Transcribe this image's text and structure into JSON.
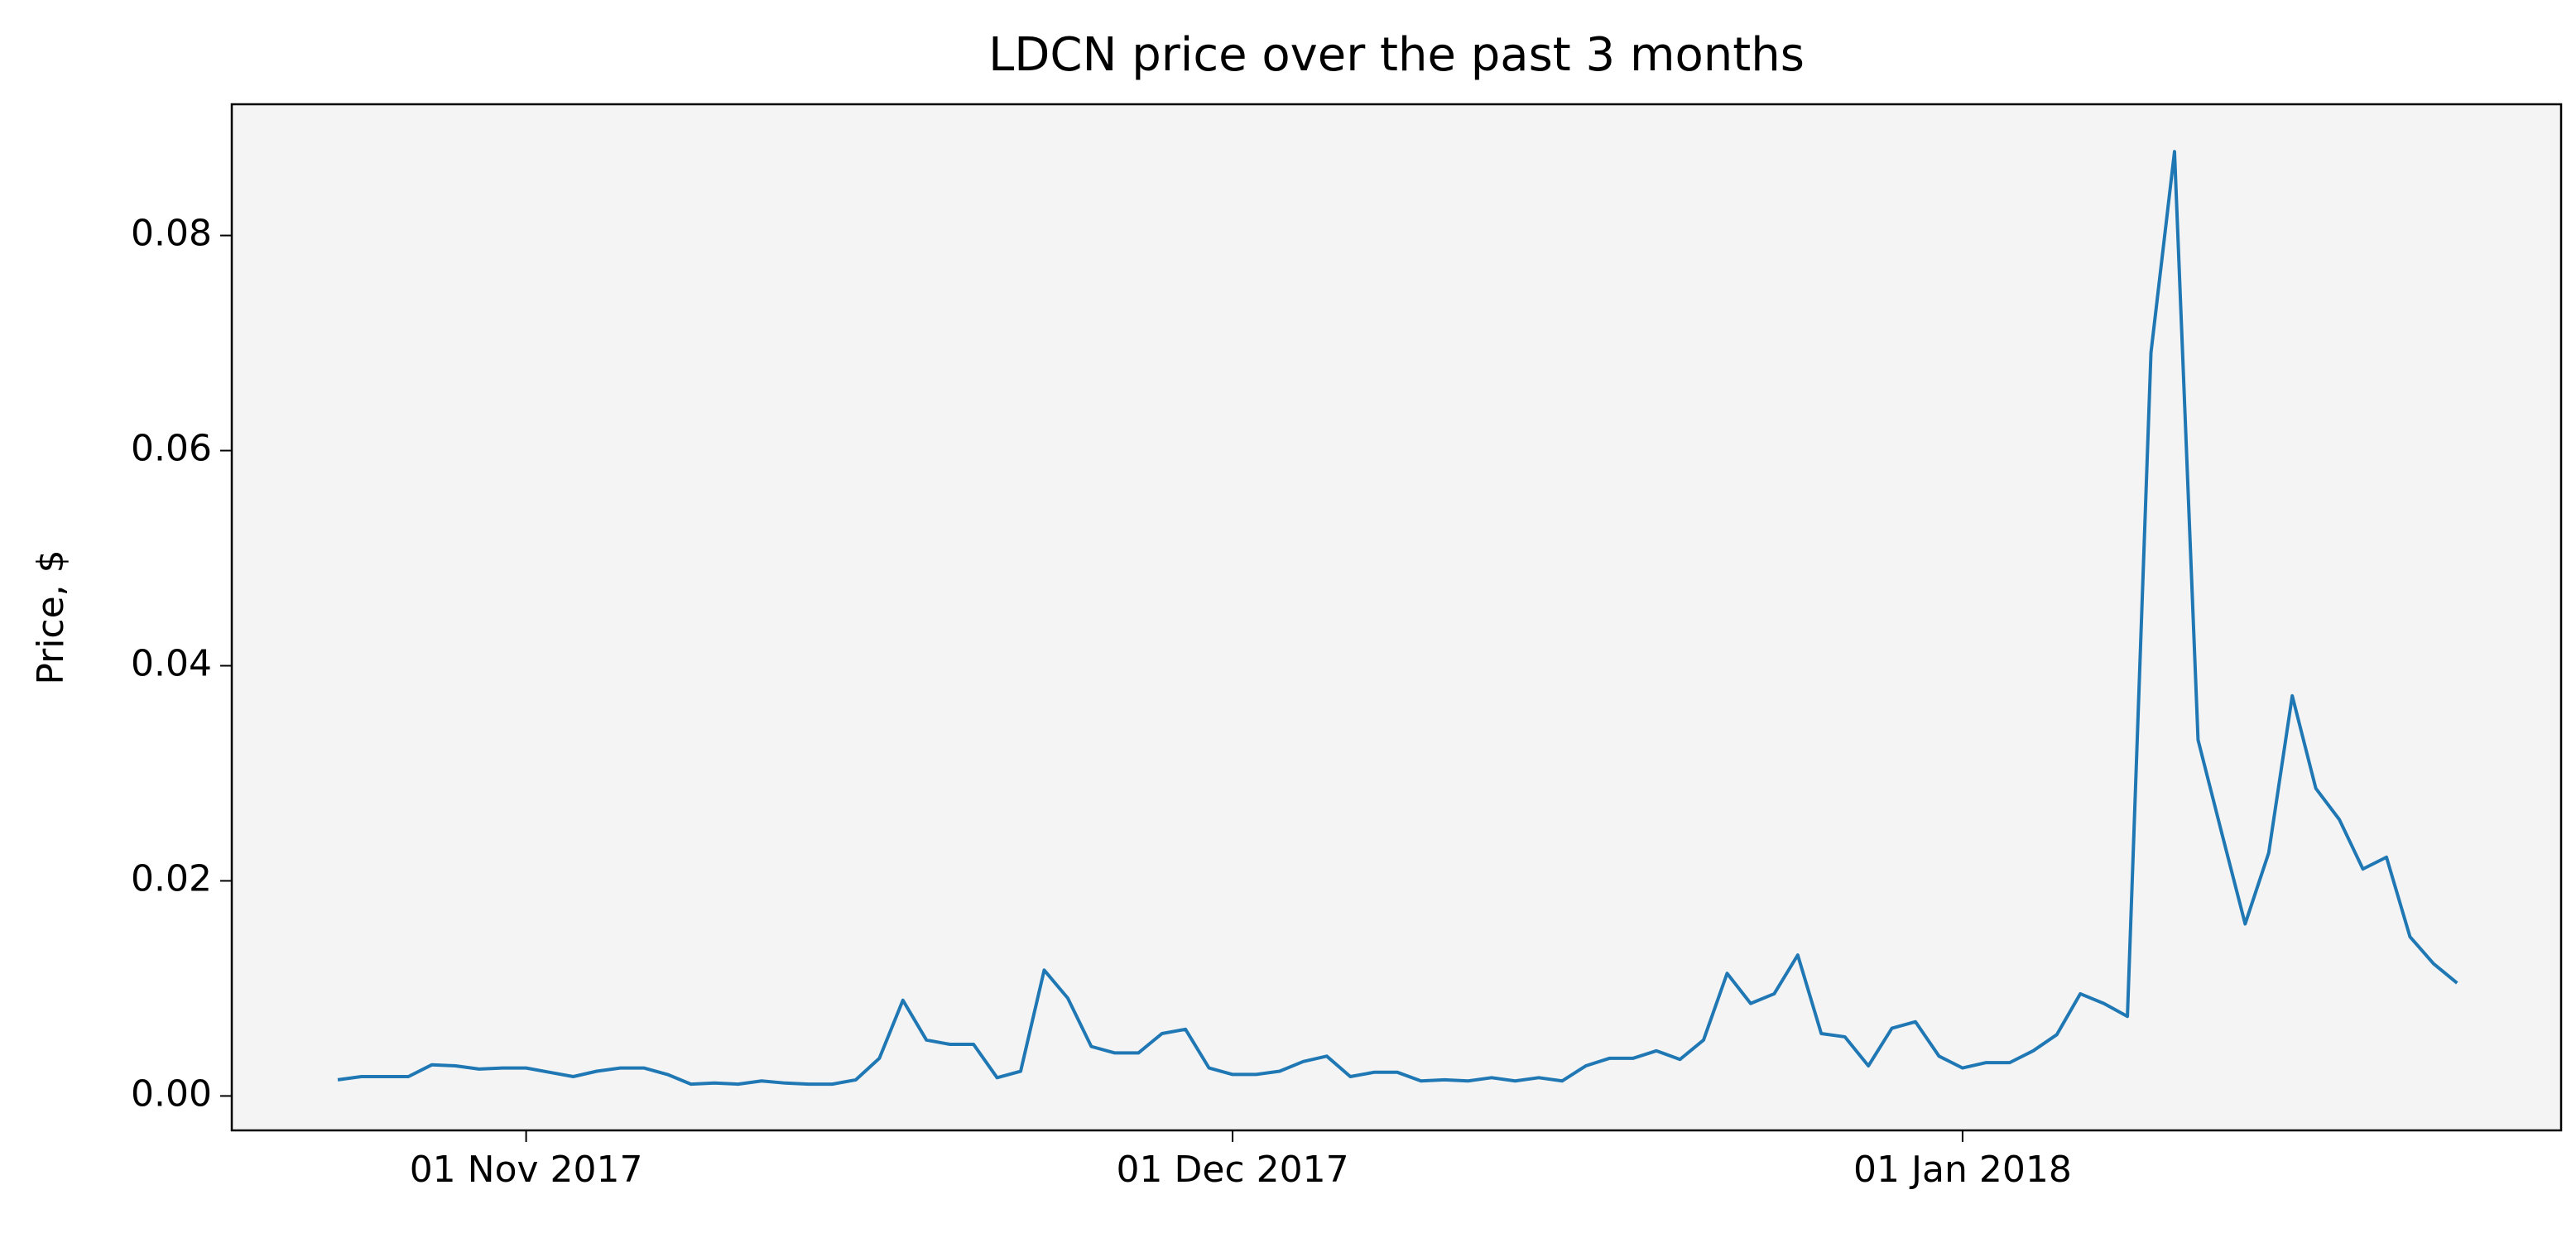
{
  "chart_data": {
    "type": "line",
    "title": "LDCN price over the past 3 months",
    "y_label": "Price, $",
    "color": "#1f77b4",
    "x": [
      "2017-10-24",
      "2017-10-25",
      "2017-10-26",
      "2017-10-27",
      "2017-10-28",
      "2017-10-29",
      "2017-10-30",
      "2017-10-31",
      "2017-11-01",
      "2017-11-02",
      "2017-11-03",
      "2017-11-04",
      "2017-11-05",
      "2017-11-06",
      "2017-11-07",
      "2017-11-08",
      "2017-11-09",
      "2017-11-10",
      "2017-11-11",
      "2017-11-12",
      "2017-11-13",
      "2017-11-14",
      "2017-11-15",
      "2017-11-16",
      "2017-11-17",
      "2017-11-18",
      "2017-11-19",
      "2017-11-20",
      "2017-11-21",
      "2017-11-22",
      "2017-11-23",
      "2017-11-24",
      "2017-11-25",
      "2017-11-26",
      "2017-11-27",
      "2017-11-28",
      "2017-11-29",
      "2017-11-30",
      "2017-12-01",
      "2017-12-02",
      "2017-12-03",
      "2017-12-04",
      "2017-12-05",
      "2017-12-06",
      "2017-12-07",
      "2017-12-08",
      "2017-12-09",
      "2017-12-10",
      "2017-12-11",
      "2017-12-12",
      "2017-12-13",
      "2017-12-14",
      "2017-12-15",
      "2017-12-16",
      "2017-12-17",
      "2017-12-18",
      "2017-12-19",
      "2017-12-20",
      "2017-12-21",
      "2017-12-22",
      "2017-12-23",
      "2017-12-24",
      "2017-12-25",
      "2017-12-26",
      "2017-12-27",
      "2017-12-28",
      "2017-12-29",
      "2017-12-30",
      "2017-12-31",
      "2018-01-01",
      "2018-01-02",
      "2018-01-03",
      "2018-01-04",
      "2018-01-05",
      "2018-01-06",
      "2018-01-07",
      "2018-01-08",
      "2018-01-09",
      "2018-01-10",
      "2018-01-11",
      "2018-01-12",
      "2018-01-13",
      "2018-01-14",
      "2018-01-15",
      "2018-01-16",
      "2018-01-17",
      "2018-01-18",
      "2018-01-19",
      "2018-01-20",
      "2018-01-21",
      "2018-01-22"
    ],
    "values": [
      0.0015,
      0.0018,
      0.0018,
      0.0018,
      0.0029,
      0.0028,
      0.0025,
      0.0026,
      0.0026,
      0.0022,
      0.0018,
      0.0023,
      0.0026,
      0.0026,
      0.002,
      0.0011,
      0.0012,
      0.0011,
      0.0014,
      0.0012,
      0.0011,
      0.0011,
      0.0015,
      0.0035,
      0.0089,
      0.0052,
      0.0048,
      0.0048,
      0.0017,
      0.0023,
      0.0117,
      0.0091,
      0.0046,
      0.004,
      0.004,
      0.0058,
      0.0062,
      0.0026,
      0.002,
      0.002,
      0.0023,
      0.0032,
      0.0037,
      0.0018,
      0.0022,
      0.0022,
      0.0014,
      0.0015,
      0.0014,
      0.0017,
      0.0014,
      0.0017,
      0.0014,
      0.0028,
      0.0035,
      0.0035,
      0.0042,
      0.0034,
      0.0052,
      0.0114,
      0.0086,
      0.0095,
      0.0131,
      0.0058,
      0.0055,
      0.0028,
      0.0063,
      0.0069,
      0.0037,
      0.0026,
      0.0031,
      0.0031,
      0.0042,
      0.0057,
      0.0095,
      0.0086,
      0.0074,
      0.0691,
      0.0878,
      0.0331,
      0.0245,
      0.016,
      0.0226,
      0.0372,
      0.0286,
      0.0257,
      0.0211,
      0.0222,
      0.0148,
      0.0123,
      0.0105
    ],
    "xlim": [
      "2017-10-19T12:00:00Z",
      "2018-01-26T10:00:00Z"
    ],
    "xticks": [
      {
        "value": "2017-11-01",
        "label": "01 Nov 2017"
      },
      {
        "value": "2017-12-01",
        "label": "01 Dec 2017"
      },
      {
        "value": "2018-01-01",
        "label": "01 Jan 2018"
      }
    ],
    "ylim": [
      -0.0032,
      0.0922
    ],
    "yticks": [
      {
        "value": 0,
        "label": "0.00"
      },
      0.02,
      0.04,
      0.06,
      0.08
    ],
    "grid": false
  }
}
